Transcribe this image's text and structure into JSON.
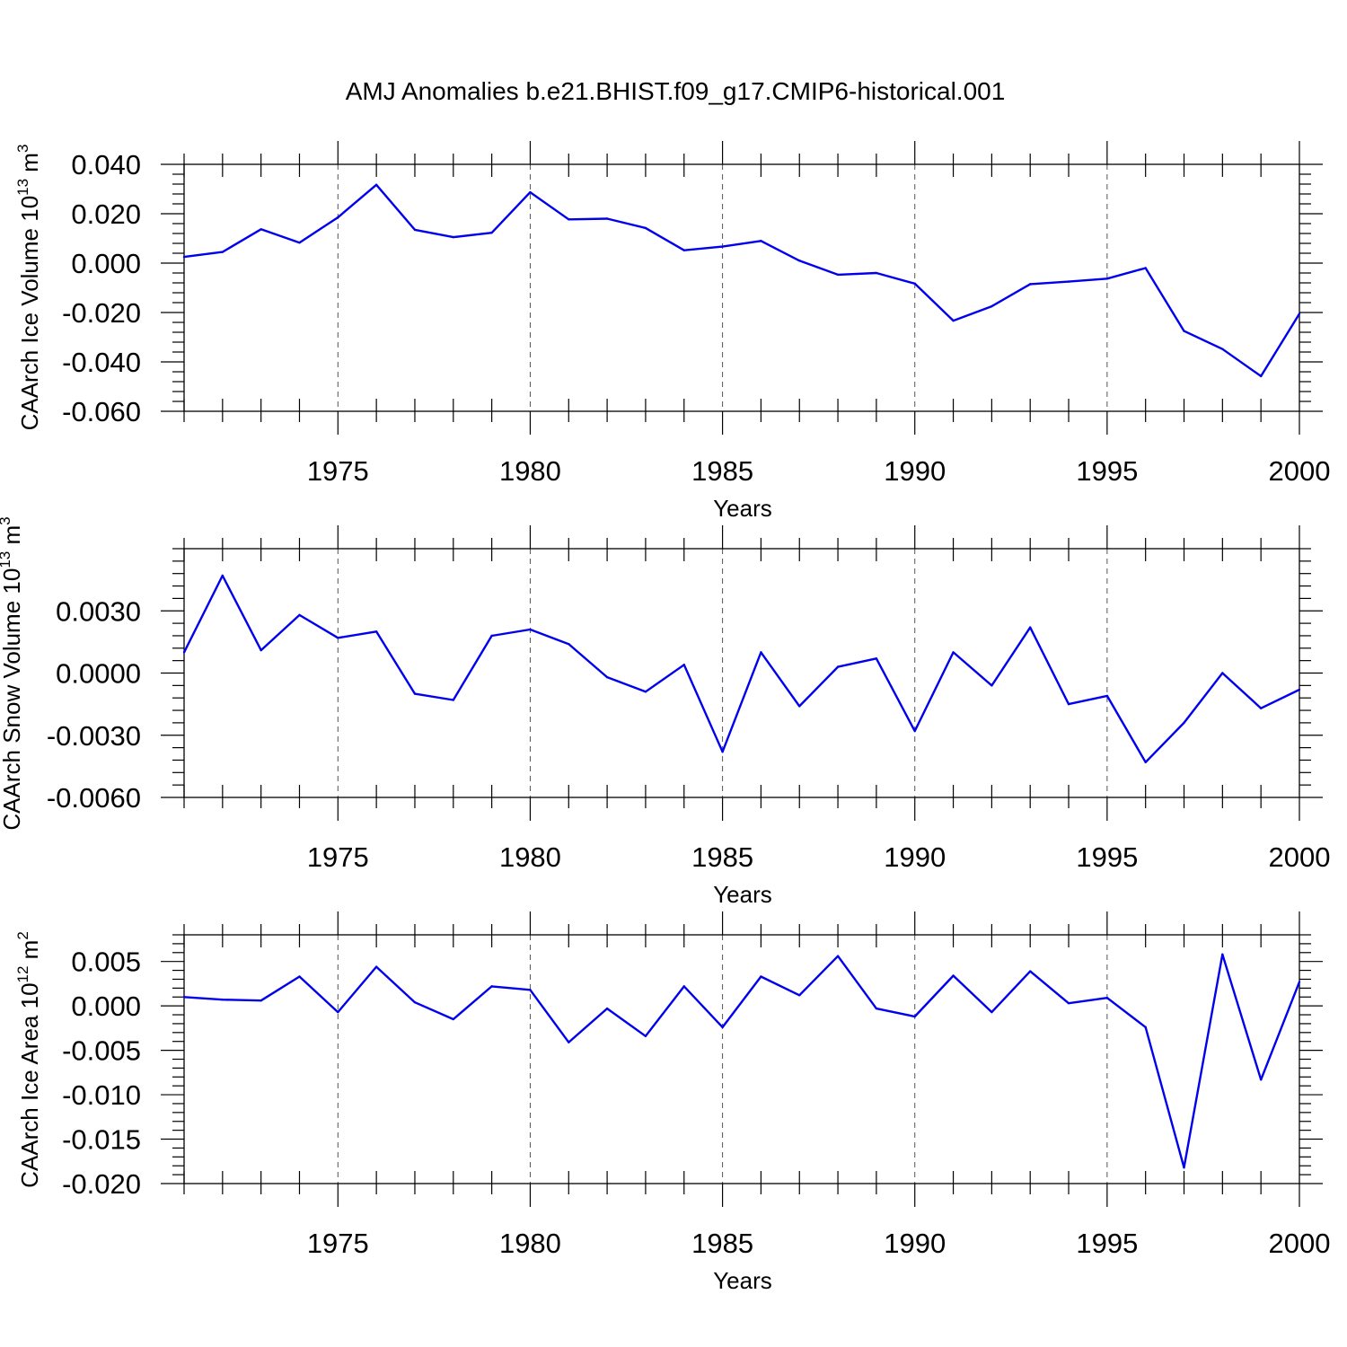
{
  "title": "AMJ Anomalies b.e21.BHIST.f09_g17.CMIP6-historical.001",
  "colors": {
    "line": "#0000ee",
    "frame": "#000000",
    "grid": "#555555"
  },
  "chart_data": [
    {
      "type": "line",
      "ylabel": "CAArch Ice Volume 10",
      "ylabel_exp": "13",
      "ylabel_unit": " m",
      "ylabel_unit_exp": "3",
      "xlabel": "Years",
      "xlim": [
        1971,
        2000
      ],
      "ylim": [
        -0.06,
        0.04
      ],
      "x_ticks": [
        1975,
        1980,
        1985,
        1990,
        1995,
        2000
      ],
      "y_ticks": [
        -0.06,
        -0.04,
        -0.02,
        0.0,
        0.02,
        0.04
      ],
      "y_tick_labels": [
        "-0.060",
        "-0.040",
        "-0.020",
        "0.000",
        "0.020",
        "0.040"
      ],
      "grid": "vertical dashed at labeled years",
      "x": [
        1971,
        1972,
        1973,
        1974,
        1975,
        1976,
        1977,
        1978,
        1979,
        1980,
        1981,
        1982,
        1983,
        1984,
        1985,
        1986,
        1987,
        1988,
        1989,
        1990,
        1991,
        1992,
        1993,
        1994,
        1995,
        1996,
        1997,
        1998,
        1999,
        2000
      ],
      "series": [
        {
          "values": [
            0.0025,
            0.0045,
            0.0137,
            0.0083,
            0.0185,
            0.0317,
            0.0135,
            0.0105,
            0.0123,
            0.0287,
            0.0177,
            0.018,
            0.0142,
            0.0052,
            0.0067,
            0.009,
            0.001,
            -0.0047,
            -0.004,
            -0.0083,
            -0.0233,
            -0.0175,
            -0.0085,
            -0.0075,
            -0.0063,
            -0.002,
            -0.0275,
            -0.0348,
            -0.0458,
            -0.0205
          ]
        }
      ]
    },
    {
      "type": "line",
      "ylabel": "CAArch Snow Volume 10",
      "ylabel_exp": "13",
      "ylabel_unit": " m",
      "ylabel_unit_exp": "3",
      "xlabel": "Years",
      "xlim": [
        1971,
        2000
      ],
      "ylim": [
        -0.006,
        0.006
      ],
      "x_ticks": [
        1975,
        1980,
        1985,
        1990,
        1995,
        2000
      ],
      "y_ticks": [
        -0.006,
        -0.003,
        0.0,
        0.003
      ],
      "y_tick_labels": [
        "-0.0060",
        "-0.0030",
        "0.0000",
        "0.0030"
      ],
      "grid": "vertical dashed at labeled years",
      "x": [
        1971,
        1972,
        1973,
        1974,
        1975,
        1976,
        1977,
        1978,
        1979,
        1980,
        1981,
        1982,
        1983,
        1984,
        1985,
        1986,
        1987,
        1988,
        1989,
        1990,
        1991,
        1992,
        1993,
        1994,
        1995,
        1996,
        1997,
        1998,
        1999,
        2000
      ],
      "series": [
        {
          "values": [
            0.001,
            0.0047,
            0.0011,
            0.0028,
            0.0017,
            0.002,
            -0.001,
            -0.0013,
            0.0018,
            0.0021,
            0.0014,
            -0.0002,
            -0.0009,
            0.0004,
            -0.0038,
            0.001,
            -0.0016,
            0.0003,
            0.0007,
            -0.0028,
            0.001,
            -0.0006,
            0.0022,
            -0.0015,
            -0.0011,
            -0.0043,
            -0.0024,
            0.0,
            -0.0017,
            -0.0008
          ]
        }
      ]
    },
    {
      "type": "line",
      "ylabel": "CAArch Ice Area 10",
      "ylabel_exp": "12",
      "ylabel_unit": " m",
      "ylabel_unit_exp": "2",
      "xlabel": "Years",
      "xlim": [
        1971,
        2000
      ],
      "ylim": [
        -0.02,
        0.008
      ],
      "x_ticks": [
        1975,
        1980,
        1985,
        1990,
        1995,
        2000
      ],
      "y_ticks": [
        -0.02,
        -0.015,
        -0.01,
        -0.005,
        0.0,
        0.005
      ],
      "y_tick_labels": [
        "-0.020",
        "-0.015",
        "-0.010",
        "-0.005",
        "0.000",
        "0.005"
      ],
      "grid": "vertical dashed at labeled years",
      "x": [
        1971,
        1972,
        1973,
        1974,
        1975,
        1976,
        1977,
        1978,
        1979,
        1980,
        1981,
        1982,
        1983,
        1984,
        1985,
        1986,
        1987,
        1988,
        1989,
        1990,
        1991,
        1992,
        1993,
        1994,
        1995,
        1996,
        1997,
        1998,
        1999,
        2000
      ],
      "series": [
        {
          "values": [
            0.001,
            0.0007,
            0.0006,
            0.0033,
            -0.0007,
            0.0044,
            0.0004,
            -0.0015,
            0.0022,
            0.0018,
            -0.0041,
            -0.0003,
            -0.0034,
            0.0022,
            -0.0024,
            0.0033,
            0.0012,
            0.0056,
            -0.0003,
            -0.0012,
            0.0034,
            -0.0007,
            0.0039,
            0.0003,
            0.0009,
            -0.0024,
            -0.0182,
            0.0058,
            -0.0083,
            0.0027
          ]
        }
      ]
    }
  ]
}
